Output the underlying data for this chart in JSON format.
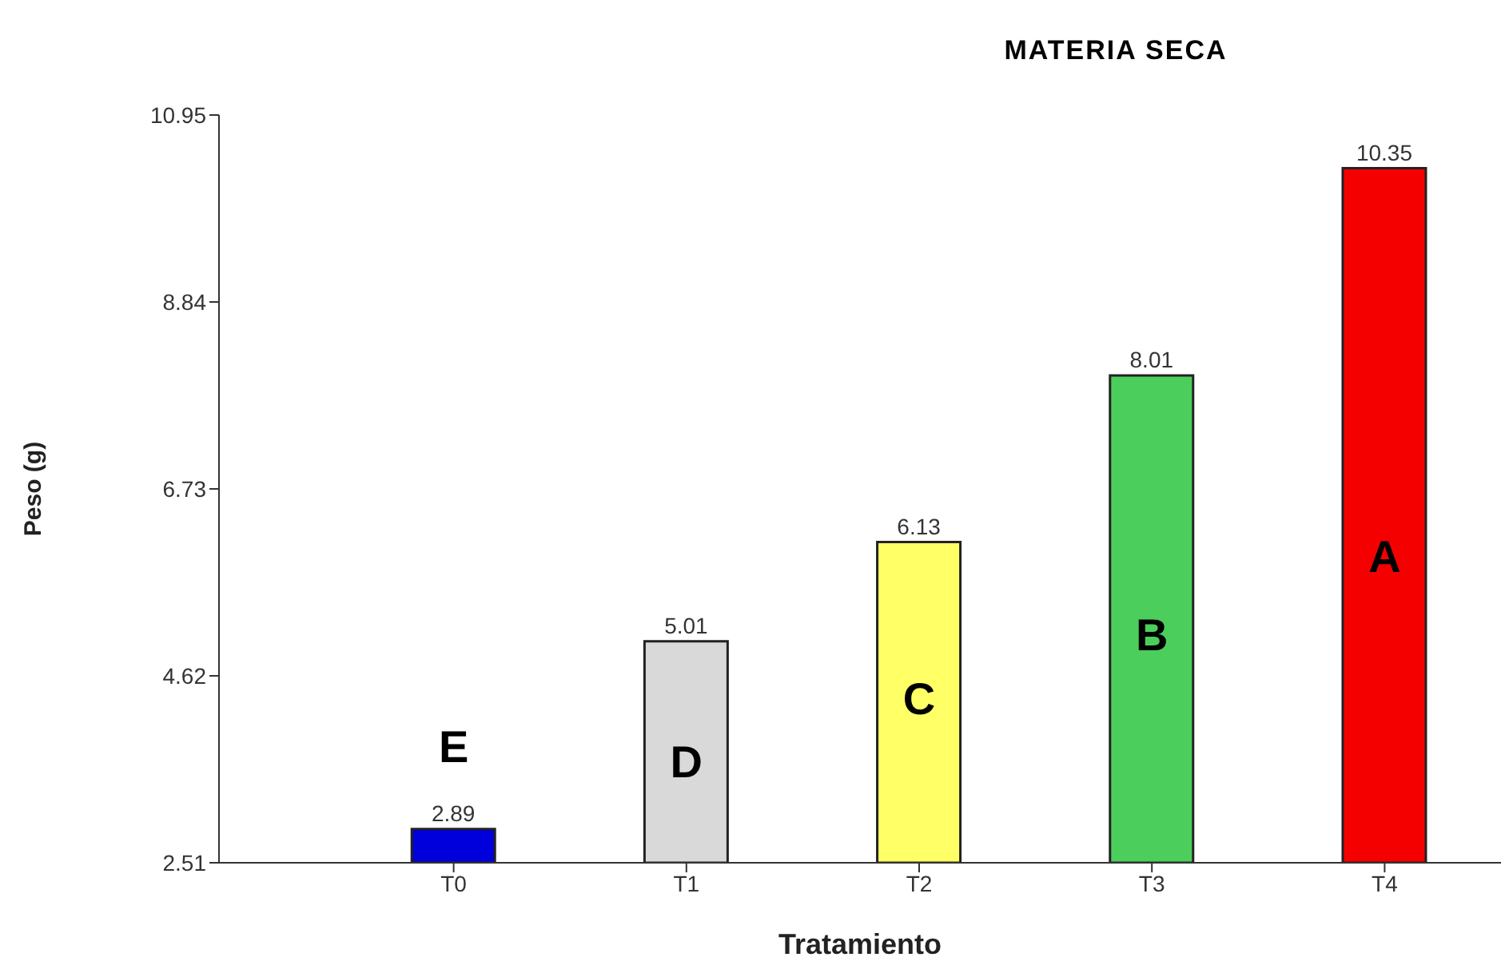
{
  "chart_data": {
    "type": "bar",
    "title": "MATERIA SECA",
    "xlabel": "Tratamiento",
    "ylabel": "Peso (g)",
    "categories": [
      "T0",
      "T1",
      "T2",
      "T3",
      "T4"
    ],
    "values": [
      2.89,
      5.01,
      6.13,
      8.01,
      10.35
    ],
    "colors": [
      "#0000dd",
      "#d9d9d9",
      "#ffff66",
      "#4cce5c",
      "#f50000"
    ],
    "ylim": [
      2.51,
      10.95
    ],
    "yticks": [
      2.51,
      4.62,
      6.73,
      8.84,
      10.95
    ],
    "data_labels": true,
    "grid": false,
    "legend": false,
    "annotations": [
      "E",
      "D",
      "C",
      "B",
      "A"
    ]
  }
}
